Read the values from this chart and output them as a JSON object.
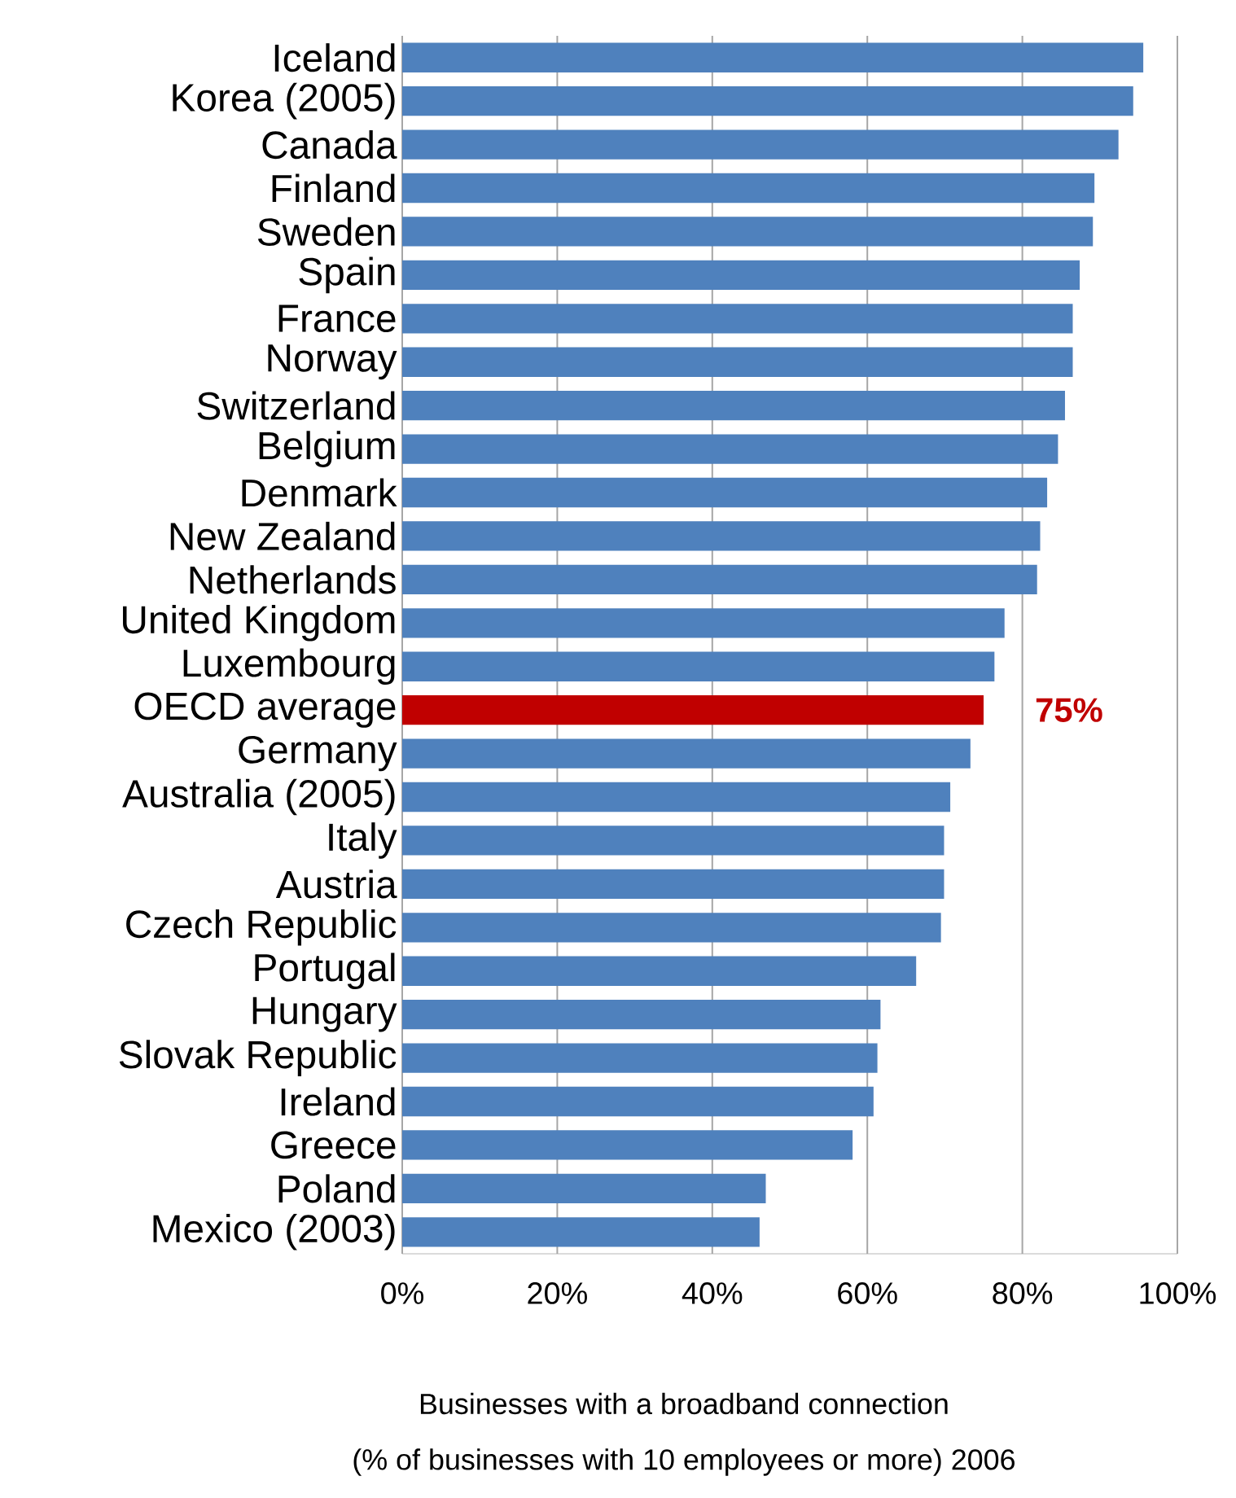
{
  "chart_data": {
    "type": "bar",
    "orientation": "horizontal",
    "categories": [
      "Iceland",
      "Korea (2005)",
      "Canada",
      "Finland",
      "Sweden",
      "Spain",
      "France",
      "Norway",
      "Switzerland",
      "Belgium",
      "Denmark",
      "New Zealand",
      "Netherlands",
      "United Kingdom",
      "Luxembourg",
      "OECD average",
      "Germany",
      "Australia (2005)",
      "Italy",
      "Austria",
      "Czech Republic",
      "Portugal",
      "Hungary",
      "Slovak Republic",
      "Ireland",
      "Greece",
      "Poland",
      "Mexico (2003)"
    ],
    "values": [
      95.6,
      94.3,
      92.4,
      89.3,
      89.1,
      87.4,
      86.5,
      86.5,
      85.5,
      84.6,
      83.2,
      82.3,
      81.9,
      77.7,
      76.4,
      75,
      73.3,
      70.7,
      69.9,
      69.9,
      69.5,
      66.3,
      61.7,
      61.3,
      60.8,
      58.1,
      46.9,
      46.1
    ],
    "colors": [
      "#4f81bd",
      "#4f81bd",
      "#4f81bd",
      "#4f81bd",
      "#4f81bd",
      "#4f81bd",
      "#4f81bd",
      "#4f81bd",
      "#4f81bd",
      "#4f81bd",
      "#4f81bd",
      "#4f81bd",
      "#4f81bd",
      "#4f81bd",
      "#4f81bd",
      "#c00000",
      "#4f81bd",
      "#4f81bd",
      "#4f81bd",
      "#4f81bd",
      "#4f81bd",
      "#4f81bd",
      "#4f81bd",
      "#4f81bd",
      "#4f81bd",
      "#4f81bd",
      "#4f81bd",
      "#4f81bd"
    ],
    "value_labels": [
      null,
      null,
      null,
      null,
      null,
      null,
      null,
      null,
      null,
      null,
      null,
      null,
      null,
      null,
      null,
      "75%",
      null,
      null,
      null,
      null,
      null,
      null,
      null,
      null,
      null,
      null,
      null,
      null
    ],
    "xlim": [
      0,
      100
    ],
    "xticks": [
      {
        "value": 0,
        "label": "0%"
      },
      {
        "value": 20,
        "label": "20%"
      },
      {
        "value": 40,
        "label": "40%"
      },
      {
        "value": 60,
        "label": "60%"
      },
      {
        "value": 80,
        "label": "80%"
      },
      {
        "value": 100,
        "label": "100%"
      }
    ],
    "grid": "x",
    "xlabel": "Businesses with a broadband connection",
    "annotations": [
      "(% of businesses with 10 employees or more) 2006"
    ]
  }
}
